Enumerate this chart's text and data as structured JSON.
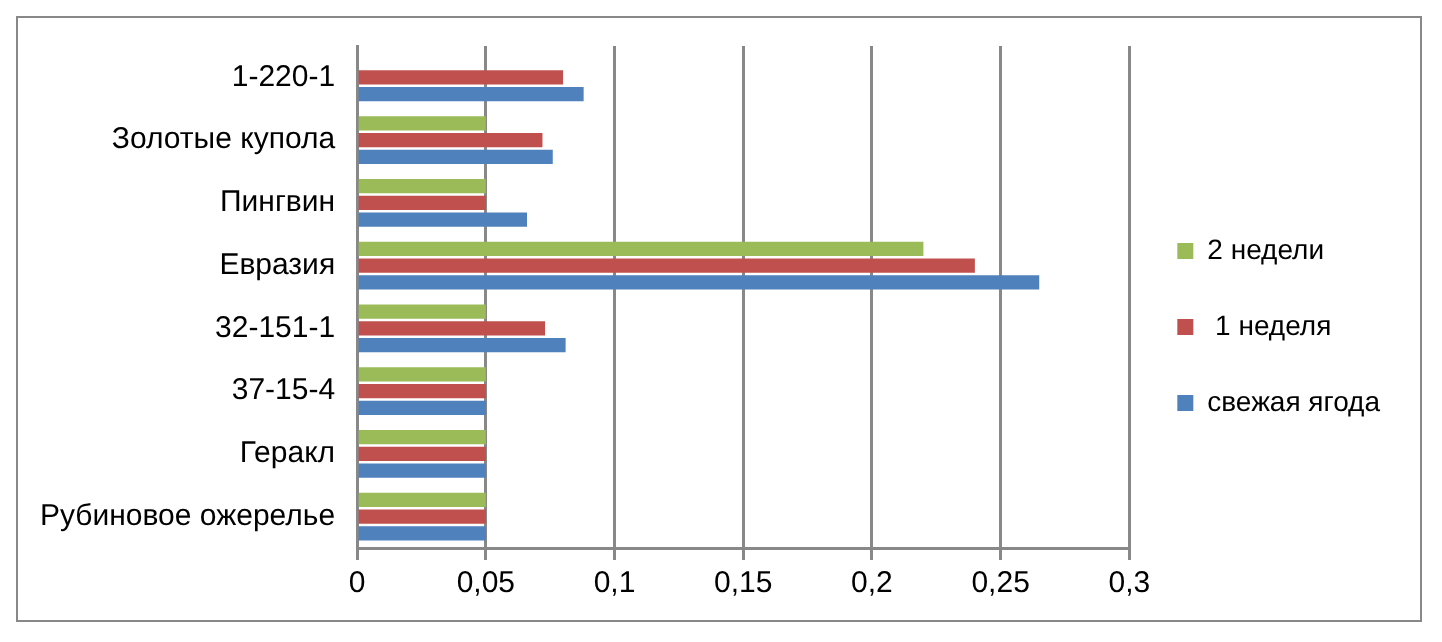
{
  "chart_data": {
    "type": "bar",
    "orientation": "horizontal",
    "categories": [
      "1-220-1",
      "Золотые купола",
      "Пингвин",
      "Евразия",
      "32-151-1",
      "37-15-4",
      "Геракл",
      "Рубиновое ожерелье"
    ],
    "series": [
      {
        "name": "2 недели",
        "color": "#9bbb59",
        "values": [
          null,
          0.05,
          0.05,
          0.22,
          0.05,
          0.05,
          0.05,
          0.05
        ]
      },
      {
        "name": " 1 неделя",
        "color": "#c0504d",
        "values": [
          0.08,
          0.072,
          0.05,
          0.24,
          0.073,
          0.05,
          0.05,
          0.05
        ]
      },
      {
        "name": "свежая ягода",
        "color": "#4f81bd",
        "values": [
          0.088,
          0.076,
          0.066,
          0.265,
          0.081,
          0.05,
          0.05,
          0.05
        ]
      }
    ],
    "xlim": [
      0,
      0.3
    ],
    "xticks": [
      {
        "value": 0,
        "label": "0"
      },
      {
        "value": 0.05,
        "label": "0,05"
      },
      {
        "value": 0.1,
        "label": "0,1"
      },
      {
        "value": 0.15,
        "label": "0,15"
      },
      {
        "value": 0.2,
        "label": "0,2"
      },
      {
        "value": 0.25,
        "label": "0,25"
      },
      {
        "value": 0.3,
        "label": "0,3"
      }
    ],
    "grid": "x",
    "legend": "right"
  }
}
